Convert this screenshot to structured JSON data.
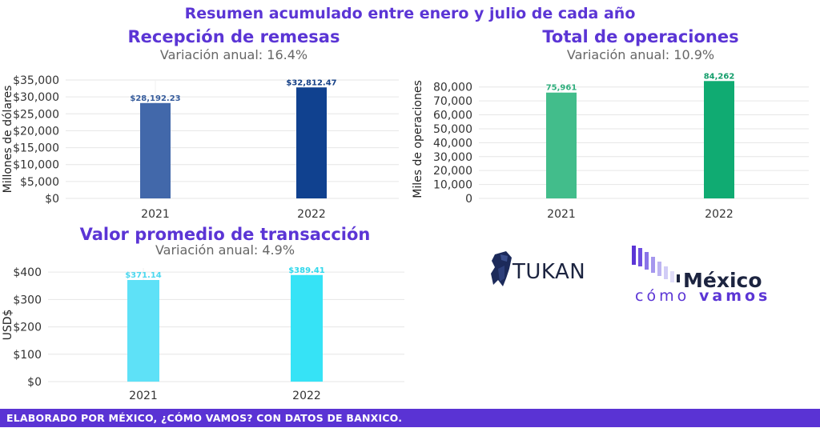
{
  "main_title": "Resumen acumulado entre enero y julio de cada año",
  "chart_data": [
    {
      "type": "bar",
      "title": "Recepción de remesas",
      "subtitle": "Variación anual: 16.4%",
      "ylabel": "Millones de dólares",
      "categories": [
        "2021",
        "2022"
      ],
      "values": [
        28192.23,
        32812.47
      ],
      "value_labels": [
        "$28,192.23",
        "$32,812.47"
      ],
      "yticks": [
        "$0",
        "$5,000",
        "$10,000",
        "$15,000",
        "$20,000",
        "$25,000",
        "$30,000",
        "$35,000"
      ],
      "ylim": [
        0,
        35000
      ],
      "tick_step": 5000,
      "colors": [
        "#4268aa",
        "#10418f"
      ],
      "label_colors": [
        "#365c9c",
        "#143f86"
      ],
      "grid": true
    },
    {
      "type": "bar",
      "title": "Total de operaciones",
      "subtitle": "Variación anual: 10.9%",
      "ylabel": "Miles de operaciones",
      "categories": [
        "2021",
        "2022"
      ],
      "values": [
        75961,
        84262
      ],
      "value_labels": [
        "75,961",
        "84,262"
      ],
      "yticks": [
        "0",
        "10,000",
        "20,000",
        "30,000",
        "40,000",
        "50,000",
        "60,000",
        "70,000",
        "80,000"
      ],
      "ylim": [
        0,
        85000
      ],
      "tick_step": 10000,
      "colors": [
        "#42bd8b",
        "#10ab72"
      ],
      "label_colors": [
        "#2fae7c",
        "#129d6a"
      ],
      "grid": true
    },
    {
      "type": "bar",
      "title": "Valor promedio de transacción",
      "subtitle": "Variación anual: 4.9%",
      "ylabel": "USD$",
      "categories": [
        "2021",
        "2022"
      ],
      "values": [
        371.14,
        389.41
      ],
      "value_labels": [
        "$371.14",
        "$389.41"
      ],
      "yticks": [
        "$0",
        "$100",
        "$200",
        "$300",
        "$400"
      ],
      "ylim": [
        0,
        415
      ],
      "tick_step": 100,
      "colors": [
        "#5ee1f7",
        "#36e3f6"
      ],
      "label_colors": [
        "#4dd8ef",
        "#2fd8ec"
      ],
      "grid": true
    }
  ],
  "logos": {
    "tukan": "TUKAN",
    "mexico_word": "México",
    "como": "cómo",
    "vamos": "vamos",
    "tukan_color": "#1c2440",
    "mcv_purple": "#5b35d5"
  },
  "footer": "ELABORADO POR MÉXICO, ¿CÓMO VAMOS? CON DATOS DE BANXICO."
}
